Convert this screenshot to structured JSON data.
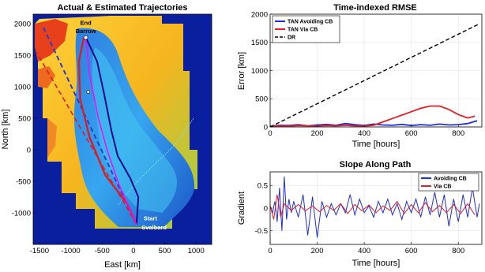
{
  "chart_data": [
    {
      "id": "trajectories",
      "type": "map",
      "title": "Actual & Estimated Trajectories",
      "xlabel": "East [km]",
      "ylabel": "North [km]",
      "xlim": [
        -1600,
        1250
      ],
      "ylim": [
        -1500,
        2150
      ],
      "x_ticks": [
        "-1500",
        "-1000",
        "-500",
        "0",
        "500",
        "1000"
      ],
      "x_tick_values": [
        -1500,
        -1000,
        -500,
        0,
        500,
        1000
      ],
      "y_ticks": [
        "2000",
        "1500",
        "1000",
        "500",
        "0",
        "-500",
        "-1000"
      ],
      "y_tick_values": [
        2000,
        1500,
        1000,
        500,
        0,
        -500,
        -1000
      ],
      "annotations": [
        {
          "text": "End",
          "x": -760,
          "y": 1980
        },
        {
          "text": "Barrow",
          "x": -760,
          "y": 1850
        },
        {
          "text": "Start",
          "x": 270,
          "y": -1120
        },
        {
          "text": "Svalbard",
          "x": 330,
          "y": -1260
        }
      ],
      "colors": {
        "deep": "#0a1f9e",
        "shelf": "#f0c23a",
        "land": "#e8401a",
        "true": "#ff00ff",
        "avoid": "#0b0b8a",
        "via": "#d4202a",
        "dr": "#2a3ec9"
      },
      "series": [
        {
          "name": "actual",
          "x": [
            50,
            -100,
            -250,
            -420,
            -560,
            -700,
            -760
          ],
          "y": [
            -1180,
            -850,
            -500,
            0,
            500,
            1200,
            1780
          ]
        },
        {
          "name": "avoid",
          "x": [
            50,
            80,
            -50,
            -250,
            -350,
            -470,
            -580,
            -760
          ],
          "y": [
            -1180,
            -750,
            -450,
            -100,
            300,
            900,
            1400,
            1780
          ]
        },
        {
          "name": "via",
          "x": [
            50,
            -100,
            -450,
            -700,
            -850,
            -870,
            -790
          ],
          "y": [
            -1180,
            -850,
            -400,
            200,
            800,
            1400,
            1780
          ]
        },
        {
          "name": "dr",
          "x": [
            50,
            -1450
          ],
          "y": [
            -1180,
            1970
          ]
        },
        {
          "name": "dr2",
          "x": [
            50,
            -1550
          ],
          "y": [
            -1180,
            1550
          ]
        }
      ]
    },
    {
      "id": "rmse",
      "type": "line",
      "title": "Time-indexed RMSE",
      "xlabel": "Time [hours]",
      "ylabel": "Error [km]",
      "xlim": [
        0,
        900
      ],
      "ylim": [
        0,
        2000
      ],
      "x_ticks": [
        "0",
        "200",
        "400",
        "600",
        "800"
      ],
      "x_tick_values": [
        0,
        200,
        400,
        600,
        800
      ],
      "y_ticks": [
        "0",
        "500",
        "1000",
        "1500",
        "2000"
      ],
      "y_tick_values": [
        0,
        500,
        1000,
        1500,
        2000
      ],
      "legend": [
        "TAN Avoiding CB",
        "TAN Via CB",
        "DR"
      ],
      "series": [
        {
          "name": "TAN Avoiding CB",
          "color": "#1f2fd6",
          "dash": "",
          "x": [
            0,
            40,
            80,
            120,
            160,
            200,
            240,
            280,
            320,
            360,
            400,
            440,
            480,
            520,
            560,
            600,
            640,
            680,
            720,
            760,
            800,
            840,
            880
          ],
          "y": [
            10,
            30,
            25,
            40,
            20,
            35,
            45,
            30,
            60,
            40,
            25,
            50,
            35,
            30,
            45,
            25,
            40,
            30,
            50,
            35,
            40,
            60,
            110
          ]
        },
        {
          "name": "TAN Via CB",
          "color": "#e01f26",
          "dash": "",
          "x": [
            0,
            40,
            80,
            120,
            160,
            200,
            240,
            280,
            320,
            360,
            400,
            440,
            480,
            520,
            560,
            600,
            640,
            680,
            720,
            760,
            800,
            840,
            870
          ],
          "y": [
            10,
            20,
            15,
            25,
            20,
            15,
            25,
            20,
            30,
            20,
            15,
            30,
            90,
            150,
            210,
            270,
            330,
            370,
            370,
            310,
            220,
            160,
            190
          ]
        },
        {
          "name": "DR",
          "color": "#000000",
          "dash": "5,3",
          "x": [
            0,
            890
          ],
          "y": [
            0,
            1830
          ]
        }
      ]
    },
    {
      "id": "slope",
      "type": "line",
      "title": "Slope Along Path",
      "xlabel": "Time [hours]",
      "ylabel": "Gradient",
      "xlim": [
        0,
        900
      ],
      "ylim": [
        -0.8,
        0.8
      ],
      "x_ticks": [
        "0",
        "200",
        "400",
        "600",
        "800"
      ],
      "x_tick_values": [
        0,
        200,
        400,
        600,
        800
      ],
      "y_ticks": [
        "0.5",
        "0",
        "-0.5"
      ],
      "y_tick_values": [
        0.5,
        0,
        -0.5
      ],
      "legend": [
        "Avoiding CB",
        "Via CB"
      ],
      "series": [
        {
          "name": "Avoiding CB",
          "color": "#1f2fd6",
          "x": [
            0,
            10,
            20,
            30,
            40,
            50,
            60,
            70,
            80,
            90,
            100,
            120,
            140,
            160,
            180,
            200,
            220,
            240,
            260,
            280,
            300,
            320,
            340,
            360,
            380,
            400,
            420,
            440,
            460,
            480,
            500,
            520,
            540,
            560,
            580,
            600,
            620,
            640,
            660,
            680,
            700,
            720,
            740,
            760,
            780,
            800,
            820,
            840,
            860,
            880,
            890
          ],
          "y": [
            0.05,
            -0.1,
            0.15,
            -0.3,
            0.45,
            -0.5,
            0.7,
            -0.25,
            0.2,
            -0.1,
            0.15,
            -0.2,
            0.3,
            -0.6,
            0.25,
            -0.65,
            0.15,
            -0.2,
            0.1,
            -0.15,
            0.1,
            -0.1,
            0.3,
            -0.15,
            0.2,
            -0.1,
            0.05,
            -0.2,
            0.15,
            -0.1,
            0.2,
            -0.15,
            0.1,
            -0.25,
            0.15,
            -0.1,
            0.2,
            -0.2,
            0.25,
            -0.15,
            0.35,
            -0.2,
            0.3,
            -0.4,
            0.2,
            -0.3,
            0.3,
            -0.2,
            0.45,
            -0.2,
            0.1
          ]
        },
        {
          "name": "Via CB",
          "color": "#e01f26",
          "x": [
            0,
            15,
            30,
            45,
            60,
            90,
            120,
            150,
            180,
            210,
            240,
            270,
            300,
            330,
            360,
            390,
            420,
            450,
            480,
            510,
            540,
            570,
            600,
            630,
            660,
            690,
            720,
            750,
            780,
            810,
            840,
            870
          ],
          "y": [
            0.05,
            -0.25,
            0.3,
            -0.2,
            0.1,
            -0.05,
            0.08,
            -0.06,
            0.05,
            -0.08,
            0.06,
            -0.05,
            0.1,
            -0.12,
            0.08,
            -0.06,
            0.07,
            -0.1,
            0.05,
            -0.05,
            0.15,
            -0.12,
            0.08,
            -0.1,
            0.12,
            -0.08,
            0.06,
            -0.1,
            0.08,
            -0.12,
            0.1,
            -0.15
          ]
        }
      ]
    }
  ]
}
